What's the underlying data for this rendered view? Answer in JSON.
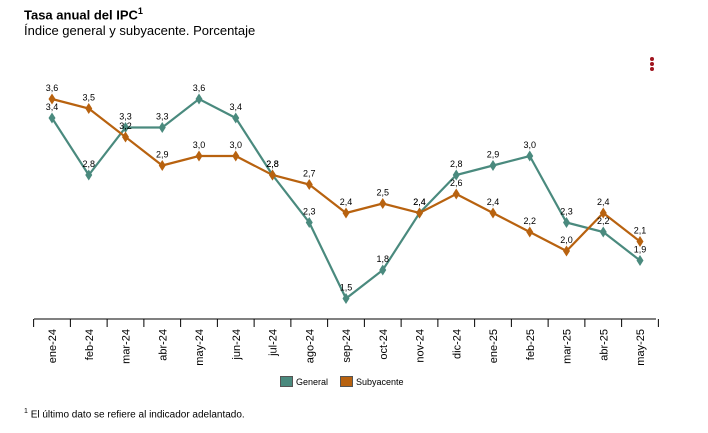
{
  "header": {
    "title": "Tasa anual del IPC",
    "title_sup": "1",
    "subtitle": "Índice general y subyacente. Porcentaje"
  },
  "menu_icon": "kebab-menu-icon",
  "legend": [
    {
      "label": "General",
      "color": "#4a8a7e"
    },
    {
      "label": "Subyacente",
      "color": "#b8620f"
    }
  ],
  "footnote": {
    "sup": "1",
    "text": "El último dato se refiere al indicador adelantado."
  },
  "chart_data": {
    "type": "line",
    "categories": [
      "ene-24",
      "feb-24",
      "mar-24",
      "abr-24",
      "may-24",
      "jun-24",
      "jul-24",
      "ago-24",
      "sep-24",
      "oct-24",
      "nov-24",
      "dic-24",
      "ene-25",
      "feb-25",
      "mar-25",
      "abr-25",
      "may-25"
    ],
    "series": [
      {
        "name": "General",
        "color": "#4a8a7e",
        "values": [
          3.4,
          2.8,
          3.3,
          3.3,
          3.6,
          3.4,
          2.8,
          2.3,
          1.5,
          1.8,
          2.4,
          2.8,
          2.9,
          3.0,
          2.3,
          2.2,
          1.9
        ]
      },
      {
        "name": "Subyacente",
        "color": "#b8620f",
        "values": [
          3.6,
          3.5,
          3.2,
          2.9,
          3.0,
          3.0,
          2.8,
          2.7,
          2.4,
          2.5,
          2.4,
          2.6,
          2.4,
          2.2,
          2.0,
          2.4,
          2.1
        ]
      }
    ],
    "data_labels": true,
    "axis_line_color": "#000000",
    "grid": false,
    "legend_position": "bottom-center"
  }
}
